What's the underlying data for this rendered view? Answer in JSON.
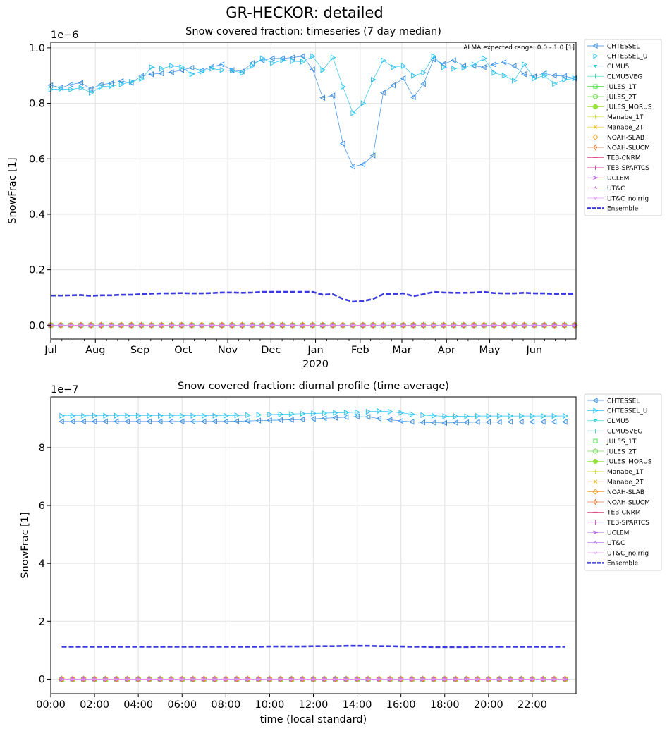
{
  "figure": {
    "title": "GR-HECKOR: detailed"
  },
  "legend_entries": [
    {
      "name": "CHTESSEL",
      "color": "#3b8fe0",
      "marker": "tri-left"
    },
    {
      "name": "CHTESSEL_U",
      "color": "#2ec4ec",
      "marker": "tri-right"
    },
    {
      "name": "CLMU5",
      "color": "#25d0d4",
      "marker": "tri-down-small"
    },
    {
      "name": "CLMU5VEG",
      "color": "#35dbb4",
      "marker": "tick"
    },
    {
      "name": "JULES_1T",
      "color": "#4fe04a",
      "marker": "square"
    },
    {
      "name": "JULES_2T",
      "color": "#72e050",
      "marker": "hexagon"
    },
    {
      "name": "JULES_MORUS",
      "color": "#96e040",
      "marker": "octagon"
    },
    {
      "name": "Manabe_1T",
      "color": "#d6e040",
      "marker": "plus"
    },
    {
      "name": "Manabe_2T",
      "color": "#e8c030",
      "marker": "x"
    },
    {
      "name": "NOAH-SLAB",
      "color": "#f0a030",
      "marker": "diamond"
    },
    {
      "name": "NOAH-SLUCM",
      "color": "#ea7e38",
      "marker": "thin-diamond"
    },
    {
      "name": "TEB-CNRM",
      "color": "#e0408a",
      "marker": "hline"
    },
    {
      "name": "TEB-SPARTCS",
      "color": "#d850c0",
      "marker": "tick"
    },
    {
      "name": "UCLEM",
      "color": "#b460e0",
      "marker": "arrow"
    },
    {
      "name": "UT&C",
      "color": "#c080f0",
      "marker": "caret-up"
    },
    {
      "name": "UT&C_noirrig",
      "color": "#e09cf6",
      "marker": "caret-down"
    },
    {
      "name": "Ensemble",
      "color": "#3a3ae0",
      "marker": "dashed"
    }
  ],
  "chart_data": [
    {
      "type": "line",
      "title": "Snow covered fraction: timeseries (7 day median)",
      "ylabel": "SnowFrac [1]",
      "scale_label": "1e−6",
      "annotation": "ALMA expected range: 0.0 - 1.0 [1]",
      "ylim": [
        -0.05,
        1.02
      ],
      "yticks": [
        0.0,
        0.2,
        0.4,
        0.6,
        0.8,
        1.0
      ],
      "ytick_labels": [
        "0.0",
        "0.2",
        "0.4",
        "0.6",
        "0.8",
        "1.0"
      ],
      "xlim": [
        0,
        365
      ],
      "xticks": [
        0,
        31,
        62,
        92,
        123,
        153,
        184,
        215,
        244,
        275,
        305,
        336
      ],
      "xtick_labels": [
        "Jul",
        "Aug",
        "Sep",
        "Oct",
        "Nov",
        "Dec",
        "Jan",
        "Feb",
        "Mar",
        "Apr",
        "May",
        "Jun"
      ],
      "x_year_label": "2020",
      "series": [
        {
          "name": "CHTESSEL",
          "x": [
            0,
            7,
            14,
            21,
            28,
            35,
            42,
            49,
            56,
            63,
            70,
            77,
            84,
            91,
            98,
            105,
            112,
            119,
            126,
            133,
            140,
            147,
            154,
            161,
            168,
            175,
            182,
            189,
            196,
            203,
            210,
            217,
            224,
            231,
            238,
            245,
            252,
            259,
            266,
            273,
            280,
            287,
            294,
            301,
            308,
            315,
            322,
            329,
            336,
            343,
            350,
            357,
            364
          ],
          "values": [
            0.865,
            0.856,
            0.868,
            0.874,
            0.852,
            0.868,
            0.872,
            0.88,
            0.874,
            0.898,
            0.905,
            0.908,
            0.912,
            0.92,
            0.928,
            0.918,
            0.932,
            0.94,
            0.92,
            0.915,
            0.945,
            0.955,
            0.962,
            0.962,
            0.965,
            0.97,
            0.922,
            0.82,
            0.828,
            0.655,
            0.572,
            0.58,
            0.612,
            0.838,
            0.865,
            0.89,
            0.822,
            0.87,
            0.958,
            0.942,
            0.955,
            0.935,
            0.935,
            0.93,
            0.94,
            0.948,
            0.935,
            0.905,
            0.897,
            0.908,
            0.9,
            0.898,
            0.89
          ]
        },
        {
          "name": "CHTESSEL_U",
          "x": [
            0,
            7,
            14,
            21,
            28,
            35,
            42,
            49,
            56,
            63,
            70,
            77,
            84,
            91,
            98,
            105,
            112,
            119,
            126,
            133,
            140,
            147,
            154,
            161,
            168,
            175,
            182,
            189,
            196,
            203,
            210,
            217,
            224,
            231,
            238,
            245,
            252,
            259,
            266,
            273,
            280,
            287,
            294,
            301,
            308,
            315,
            322,
            329,
            336,
            343,
            350,
            357,
            364
          ],
          "values": [
            0.85,
            0.852,
            0.85,
            0.856,
            0.838,
            0.86,
            0.862,
            0.868,
            0.878,
            0.888,
            0.93,
            0.925,
            0.935,
            0.93,
            0.905,
            0.915,
            0.925,
            0.92,
            0.918,
            0.91,
            0.935,
            0.962,
            0.945,
            0.955,
            0.952,
            0.95,
            0.97,
            0.92,
            0.965,
            0.86,
            0.765,
            0.8,
            0.885,
            0.955,
            0.93,
            0.935,
            0.9,
            0.91,
            0.97,
            0.93,
            0.925,
            0.928,
            0.94,
            0.962,
            0.91,
            0.9,
            0.882,
            0.94,
            0.89,
            0.9,
            0.87,
            0.885,
            0.89
          ]
        },
        {
          "name": "Ensemble",
          "x": [
            0,
            7,
            14,
            21,
            28,
            35,
            42,
            49,
            56,
            63,
            70,
            77,
            84,
            91,
            98,
            105,
            112,
            119,
            126,
            133,
            140,
            147,
            154,
            161,
            168,
            175,
            182,
            189,
            196,
            203,
            210,
            217,
            224,
            231,
            238,
            245,
            252,
            259,
            266,
            273,
            280,
            287,
            294,
            301,
            308,
            315,
            322,
            329,
            336,
            343,
            350,
            357,
            364
          ],
          "values": [
            0.107,
            0.107,
            0.108,
            0.109,
            0.106,
            0.108,
            0.108,
            0.11,
            0.11,
            0.112,
            0.114,
            0.115,
            0.115,
            0.116,
            0.115,
            0.115,
            0.116,
            0.118,
            0.118,
            0.117,
            0.118,
            0.12,
            0.12,
            0.12,
            0.12,
            0.12,
            0.12,
            0.11,
            0.112,
            0.095,
            0.085,
            0.087,
            0.095,
            0.112,
            0.112,
            0.115,
            0.105,
            0.112,
            0.12,
            0.118,
            0.117,
            0.117,
            0.118,
            0.12,
            0.116,
            0.115,
            0.115,
            0.117,
            0.115,
            0.115,
            0.113,
            0.113,
            0.113
          ]
        }
      ],
      "zero_series_x": [
        0,
        7,
        14,
        21,
        28,
        35,
        42,
        49,
        56,
        63,
        70,
        77,
        84,
        91,
        98,
        105,
        112,
        119,
        126,
        133,
        140,
        147,
        154,
        161,
        168,
        175,
        182,
        189,
        196,
        203,
        210,
        217,
        224,
        231,
        238,
        245,
        252,
        259,
        266,
        273,
        280,
        287,
        294,
        301,
        308,
        315,
        322,
        329,
        336,
        343,
        350,
        357,
        364
      ],
      "zero_series_value": 0
    },
    {
      "type": "line",
      "title": "Snow covered fraction: diurnal profile (time average)",
      "xlabel": "time (local standard)",
      "ylabel": "SnowFrac [1]",
      "scale_label": "1e−7",
      "ylim": [
        -0.5,
        9.75
      ],
      "yticks": [
        0,
        2,
        4,
        6,
        8
      ],
      "ytick_labels": [
        "0",
        "2",
        "4",
        "6",
        "8"
      ],
      "xlim": [
        0,
        24
      ],
      "xticks": [
        0,
        2,
        4,
        6,
        8,
        10,
        12,
        14,
        16,
        18,
        20,
        22
      ],
      "xtick_labels": [
        "00:00",
        "02:00",
        "04:00",
        "06:00",
        "08:00",
        "10:00",
        "12:00",
        "14:00",
        "16:00",
        "18:00",
        "20:00",
        "22:00"
      ],
      "series": [
        {
          "name": "CHTESSEL",
          "x": [
            0.5,
            1,
            1.5,
            2,
            2.5,
            3,
            3.5,
            4,
            4.5,
            5,
            5.5,
            6,
            6.5,
            7,
            7.5,
            8,
            8.5,
            9,
            9.5,
            10,
            10.5,
            11,
            11.5,
            12,
            12.5,
            13,
            13.5,
            14,
            14.5,
            15,
            15.5,
            16,
            16.5,
            17,
            17.5,
            18,
            18.5,
            19,
            19.5,
            20,
            20.5,
            21,
            21.5,
            22,
            22.5,
            23,
            23.5
          ],
          "values": [
            8.9,
            8.9,
            8.9,
            8.9,
            8.9,
            8.9,
            8.9,
            8.9,
            8.9,
            8.9,
            8.9,
            8.9,
            8.9,
            8.9,
            8.9,
            8.9,
            8.91,
            8.92,
            8.93,
            8.94,
            8.95,
            8.96,
            8.97,
            8.99,
            9.01,
            9.03,
            9.05,
            9.07,
            9.06,
            9.0,
            8.96,
            8.92,
            8.89,
            8.87,
            8.86,
            8.85,
            8.86,
            8.87,
            8.88,
            8.88,
            8.88,
            8.89,
            8.89,
            8.89,
            8.89,
            8.89,
            8.89
          ]
        },
        {
          "name": "CHTESSEL_U",
          "x": [
            0.5,
            1,
            1.5,
            2,
            2.5,
            3,
            3.5,
            4,
            4.5,
            5,
            5.5,
            6,
            6.5,
            7,
            7.5,
            8,
            8.5,
            9,
            9.5,
            10,
            10.5,
            11,
            11.5,
            12,
            12.5,
            13,
            13.5,
            14,
            14.5,
            15,
            15.5,
            16,
            16.5,
            17,
            17.5,
            18,
            18.5,
            19,
            19.5,
            20,
            20.5,
            21,
            21.5,
            22,
            22.5,
            23,
            23.5
          ],
          "values": [
            9.1,
            9.1,
            9.1,
            9.1,
            9.1,
            9.1,
            9.1,
            9.1,
            9.1,
            9.1,
            9.1,
            9.1,
            9.1,
            9.1,
            9.1,
            9.1,
            9.11,
            9.12,
            9.13,
            9.14,
            9.15,
            9.16,
            9.17,
            9.18,
            9.19,
            9.2,
            9.21,
            9.22,
            9.24,
            9.26,
            9.24,
            9.2,
            9.15,
            9.12,
            9.1,
            9.08,
            9.08,
            9.08,
            9.09,
            9.09,
            9.09,
            9.09,
            9.09,
            9.09,
            9.09,
            9.09,
            9.09
          ]
        },
        {
          "name": "Ensemble",
          "x": [
            0.5,
            1,
            1.5,
            2,
            2.5,
            3,
            3.5,
            4,
            4.5,
            5,
            5.5,
            6,
            6.5,
            7,
            7.5,
            8,
            8.5,
            9,
            9.5,
            10,
            10.5,
            11,
            11.5,
            12,
            12.5,
            13,
            13.5,
            14,
            14.5,
            15,
            15.5,
            16,
            16.5,
            17,
            17.5,
            18,
            18.5,
            19,
            19.5,
            20,
            20.5,
            21,
            21.5,
            22,
            22.5,
            23,
            23.5
          ],
          "values": [
            1.12,
            1.12,
            1.12,
            1.12,
            1.12,
            1.12,
            1.12,
            1.12,
            1.12,
            1.12,
            1.12,
            1.12,
            1.12,
            1.12,
            1.12,
            1.12,
            1.12,
            1.12,
            1.12,
            1.13,
            1.13,
            1.13,
            1.13,
            1.14,
            1.14,
            1.14,
            1.15,
            1.15,
            1.15,
            1.14,
            1.14,
            1.13,
            1.12,
            1.12,
            1.11,
            1.11,
            1.11,
            1.11,
            1.12,
            1.12,
            1.12,
            1.12,
            1.12,
            1.12,
            1.12,
            1.12,
            1.12
          ]
        }
      ],
      "zero_series_x": [
        0.5,
        1,
        1.5,
        2,
        2.5,
        3,
        3.5,
        4,
        4.5,
        5,
        5.5,
        6,
        6.5,
        7,
        7.5,
        8,
        8.5,
        9,
        9.5,
        10,
        10.5,
        11,
        11.5,
        12,
        12.5,
        13,
        13.5,
        14,
        14.5,
        15,
        15.5,
        16,
        16.5,
        17,
        17.5,
        18,
        18.5,
        19,
        19.5,
        20,
        20.5,
        21,
        21.5,
        22,
        22.5,
        23,
        23.5
      ],
      "zero_series_value": 0
    }
  ]
}
